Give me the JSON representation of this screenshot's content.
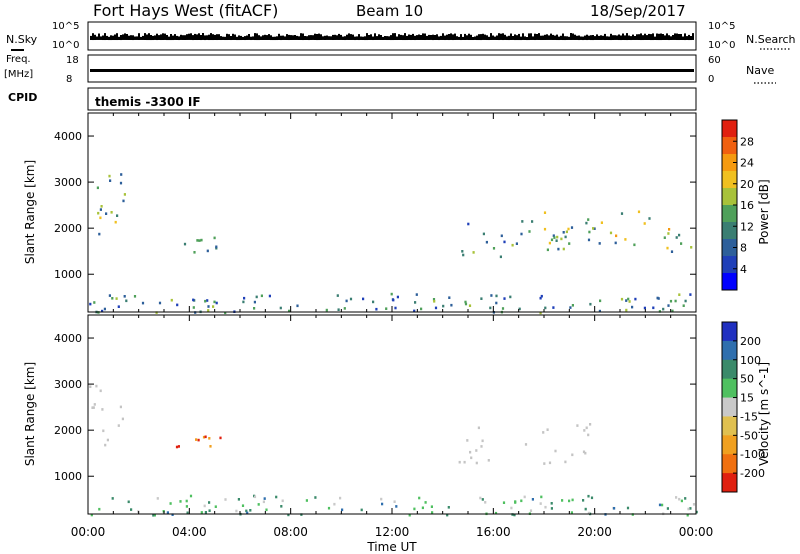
{
  "header": {
    "title": "Fort Hays West (fitACF)",
    "beam": "Beam 10",
    "date": "18/Sep/2017"
  },
  "top_panels": {
    "nsky_label": "N.Sky",
    "nsky_ticks": [
      "10^5",
      "10^0"
    ],
    "nsearch_label": "N.Search",
    "nsearch_ticks": [
      "10^5",
      "10^0"
    ],
    "freq_label_1": "Freq.",
    "freq_label_2": "[MHz]",
    "freq_ticks": [
      "18",
      "8"
    ],
    "nave_label": "Nave",
    "nave_ticks": [
      "60",
      "0"
    ],
    "cpid_label": "CPID",
    "cpid_text": "themis -3300 IF"
  },
  "colors": {
    "power": [
      "#0000ff",
      "#1f3fb8",
      "#2d5f9a",
      "#3a7e72",
      "#4fa05a",
      "#a8c23a",
      "#f0c020",
      "#f59a10",
      "#f06010",
      "#e02010"
    ],
    "velocity": [
      "#2030c0",
      "#2f6fae",
      "#3a8a6a",
      "#4fc060",
      "#c9c9c9",
      "#e0c050",
      "#f0a020",
      "#f07010",
      "#e02010"
    ],
    "ground_scatter": "#c4c4c4"
  },
  "chart_data": [
    {
      "type": "heatmap",
      "name": "power",
      "ylabel": "Slant Range [km]",
      "y_ticks": [
        1000,
        2000,
        3000,
        4000
      ],
      "ylim": [
        180,
        4500
      ],
      "x_ticks": [
        "00:00",
        "04:00",
        "08:00",
        "12:00",
        "16:00",
        "20:00",
        "00:00"
      ],
      "xlim_hours": [
        0,
        24
      ],
      "colorbar_label": "Power [dB]",
      "colorbar_ticks": [
        "4",
        "8",
        "12",
        "16",
        "20",
        "24",
        "28"
      ],
      "colorbar_range": [
        0,
        30
      ],
      "echo_regions": [
        {
          "t": [
            0.0,
            1.6
          ],
          "range_km": [
            1700,
            3200
          ],
          "power_db": 13
        },
        {
          "t": [
            3.3,
            5.3
          ],
          "range_km": [
            1500,
            1900
          ],
          "power_db": 12
        },
        {
          "t": [
            14.5,
            20.0
          ],
          "range_km": [
            1300,
            2200
          ],
          "power_db": 11
        },
        {
          "t": [
            17.8,
            24.0
          ],
          "range_km": [
            1500,
            2400
          ],
          "power_db": 15
        },
        {
          "t": [
            0.0,
            24.0
          ],
          "range_km": [
            180,
            600
          ],
          "power_db": 10
        }
      ]
    },
    {
      "type": "heatmap",
      "name": "velocity",
      "ylabel": "Slant Range [km]",
      "y_ticks": [
        1000,
        2000,
        3000,
        4000
      ],
      "ylim": [
        180,
        4500
      ],
      "x_ticks": [
        "00:00",
        "04:00",
        "08:00",
        "12:00",
        "16:00",
        "20:00",
        "00:00"
      ],
      "xlabel": "Time UT",
      "colorbar_label": "Velocity [m s^-1]",
      "colorbar_ticks": [
        "200",
        "100",
        "50",
        "15",
        "-15",
        "-50",
        "-100",
        "-200"
      ],
      "echo_regions": [
        {
          "t": [
            0.0,
            1.6
          ],
          "range_km": [
            1700,
            3200
          ],
          "velocity_ms": 0,
          "ground_scatter": true
        },
        {
          "t": [
            3.3,
            5.3
          ],
          "range_km": [
            1500,
            1900
          ],
          "velocity_ms": -150
        },
        {
          "t": [
            14.5,
            20.0
          ],
          "range_km": [
            1300,
            2200
          ],
          "velocity_ms": 0,
          "ground_scatter": true
        },
        {
          "t": [
            0.0,
            24.0
          ],
          "range_km": [
            180,
            600
          ],
          "velocity_ms": 30
        }
      ]
    }
  ]
}
